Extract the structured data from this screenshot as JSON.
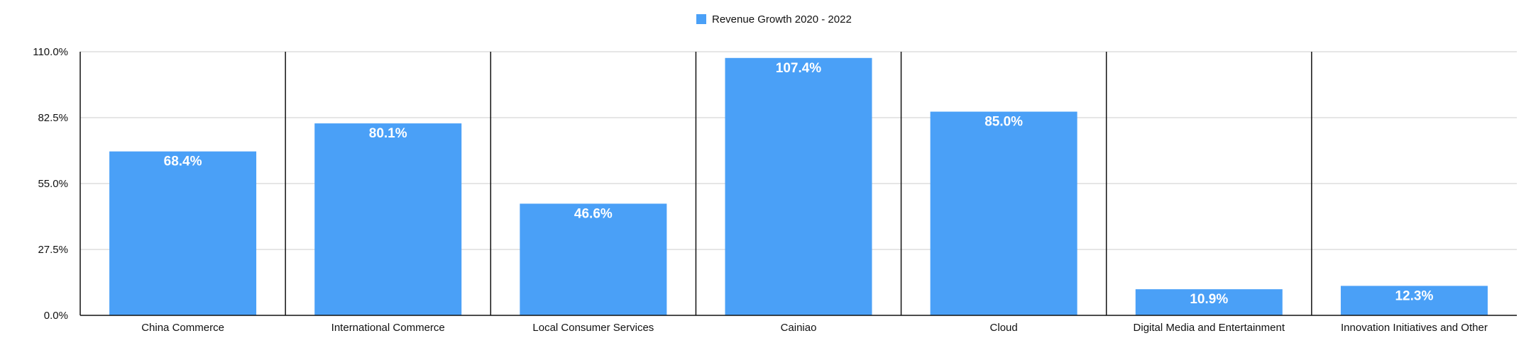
{
  "chart_data": {
    "type": "bar",
    "series": [
      {
        "name": "Revenue Growth 2020 - 2022",
        "color": "#4aa0f7"
      }
    ],
    "categories": [
      "China Commerce",
      "International Commerce",
      "Local Consumer Services",
      "Cainiao",
      "Cloud",
      "Digital Media and Entertainment",
      "Innovation Initiatives and Other"
    ],
    "values": [
      68.4,
      80.1,
      46.6,
      107.4,
      85.0,
      10.9,
      12.3
    ],
    "data_labels": [
      "68.4%",
      "80.1%",
      "46.6%",
      "107.4%",
      "85.0%",
      "10.9%",
      "12.3%"
    ],
    "y_ticks": [
      0,
      27.5,
      55,
      82.5,
      110
    ],
    "y_tick_labels": [
      "0.0%",
      "27.5%",
      "55.0%",
      "82.5%",
      "110.0%"
    ],
    "ylim": [
      0,
      110
    ],
    "grid": true,
    "legend_position": "top-center"
  }
}
